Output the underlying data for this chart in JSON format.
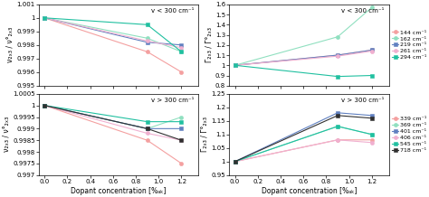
{
  "top_left": {
    "label": "v < 300 cm⁻¹",
    "x": [
      0,
      0.9,
      1.2
    ],
    "series": [
      {
        "label": "144 cm⁻¹",
        "color": "#f4a0a0",
        "marker": "o",
        "y": [
          1.0,
          0.9975,
          0.996
        ]
      },
      {
        "label": "162 cm⁻¹",
        "color": "#90e0c0",
        "marker": "o",
        "y": [
          1.0,
          0.9985,
          0.9975
        ]
      },
      {
        "label": "219 cm⁻¹",
        "color": "#6080c0",
        "marker": "s",
        "y": [
          1.0,
          0.9982,
          0.998
        ]
      },
      {
        "label": "261 cm⁻¹",
        "color": "#f0b0d0",
        "marker": "o",
        "y": [
          1.0,
          0.9983,
          0.9978
        ]
      },
      {
        "label": "294 cm⁻¹",
        "color": "#20c0a0",
        "marker": "s",
        "y": [
          1.0,
          0.9995,
          0.9975
        ]
      }
    ],
    "ylabel": "ν₂ₓ₃ / ν°₂ₓ₃",
    "ylim": [
      0.995,
      1.001
    ],
    "yticks": [
      0.995,
      0.996,
      0.997,
      0.998,
      0.999,
      1.0,
      1.001
    ]
  },
  "top_right": {
    "label": "v < 300 cm⁻¹",
    "x": [
      0,
      0.9,
      1.2
    ],
    "series": [
      {
        "label": "144 cm⁻¹",
        "color": "#f4a0a0",
        "marker": "o",
        "y": [
          1.0,
          1.1,
          1.15
        ]
      },
      {
        "label": "162 cm⁻¹",
        "color": "#90e0c0",
        "marker": "o",
        "y": [
          1.0,
          1.28,
          1.57
        ]
      },
      {
        "label": "219 cm⁻¹",
        "color": "#6080c0",
        "marker": "s",
        "y": [
          1.0,
          1.1,
          1.15
        ]
      },
      {
        "label": "261 cm⁻¹",
        "color": "#f0b0d0",
        "marker": "o",
        "y": [
          1.0,
          1.09,
          1.14
        ]
      },
      {
        "label": "294 cm⁻¹",
        "color": "#20c0a0",
        "marker": "s",
        "y": [
          1.0,
          0.89,
          0.9
        ]
      }
    ],
    "ylabel": "Γ₂ₓ₃ / Γ°₂ₓ₃",
    "ylim": [
      0.8,
      1.6
    ],
    "yticks": [
      0.8,
      0.9,
      1.0,
      1.1,
      1.2,
      1.3,
      1.4,
      1.5,
      1.6
    ],
    "legend_labels": [
      "144 cm⁻¹",
      "162 cm⁻¹",
      "219 cm⁻¹",
      "261 cm⁻¹",
      "294 cm⁻¹"
    ],
    "legend_colors": [
      "#f4a0a0",
      "#90e0c0",
      "#6080c0",
      "#f0b0d0",
      "#20c0a0"
    ],
    "legend_markers": [
      "o",
      "o",
      "s",
      "o",
      "s"
    ]
  },
  "bottom_left": {
    "label": "v > 300 cm⁻¹",
    "x": [
      0,
      0.9,
      1.2
    ],
    "series": [
      {
        "label": "339 cm⁻¹",
        "color": "#f4a0a0",
        "marker": "o",
        "y": [
          1.0,
          0.9985,
          0.9975
        ]
      },
      {
        "label": "369 cm⁻¹",
        "color": "#90e0c0",
        "marker": "o",
        "y": [
          1.0,
          0.999,
          0.9995
        ]
      },
      {
        "label": "401 cm⁻¹",
        "color": "#6080c0",
        "marker": "s",
        "y": [
          1.0,
          0.999,
          0.999
        ]
      },
      {
        "label": "406 cm⁻¹",
        "color": "#f0b0d0",
        "marker": "o",
        "y": [
          1.0,
          0.9988,
          0.9985
        ]
      },
      {
        "label": "545 cm⁻¹",
        "color": "#20c0a0",
        "marker": "s",
        "y": [
          1.0,
          0.9993,
          0.9993
        ]
      },
      {
        "label": "718 cm⁻¹",
        "color": "#303030",
        "marker": "s",
        "y": [
          1.0,
          0.999,
          0.9985
        ]
      }
    ],
    "ylabel": "ν₂ₓ₃ / ν°₂ₓ₃",
    "ylim": [
      0.997,
      1.0005
    ],
    "yticks": [
      0.997,
      0.9975,
      0.998,
      0.9985,
      0.999,
      0.9995,
      1.0,
      1.0005
    ]
  },
  "bottom_right": {
    "label": "v > 300 cm⁻¹",
    "x": [
      0,
      0.9,
      1.2
    ],
    "series": [
      {
        "label": "339 cm⁻¹",
        "color": "#f4a0a0",
        "marker": "o",
        "y": [
          1.0,
          1.08,
          1.08
        ]
      },
      {
        "label": "369 cm⁻¹",
        "color": "#90e0c0",
        "marker": "o",
        "y": [
          1.0,
          1.13,
          1.1
        ]
      },
      {
        "label": "401 cm⁻¹",
        "color": "#6080c0",
        "marker": "s",
        "y": [
          1.0,
          1.18,
          1.17
        ]
      },
      {
        "label": "406 cm⁻¹",
        "color": "#f0b0d0",
        "marker": "o",
        "y": [
          1.0,
          1.08,
          1.07
        ]
      },
      {
        "label": "545 cm⁻¹",
        "color": "#20c0a0",
        "marker": "s",
        "y": [
          1.0,
          1.13,
          1.1
        ]
      },
      {
        "label": "718 cm⁻¹",
        "color": "#303030",
        "marker": "s",
        "y": [
          1.0,
          1.17,
          1.16
        ]
      }
    ],
    "ylabel": "Γ₂ₓ₃ / Γ°₂ₓ₃",
    "ylim": [
      0.95,
      1.25
    ],
    "yticks": [
      0.95,
      1.0,
      1.05,
      1.1,
      1.15,
      1.2,
      1.25
    ],
    "legend_labels": [
      "339 cm⁻¹",
      "369 cm⁻¹",
      "401 cm⁻¹",
      "406 cm⁻¹",
      "545 cm⁻¹",
      "718 cm⁻¹"
    ],
    "legend_colors": [
      "#f4a0a0",
      "#90e0c0",
      "#6080c0",
      "#f0b0d0",
      "#20c0a0",
      "#303030"
    ],
    "legend_markers": [
      "o",
      "o",
      "s",
      "o",
      "s",
      "s"
    ]
  },
  "xlabel": "Dopant concentration [%ₐₖ]",
  "xlim": [
    -0.05,
    1.35
  ],
  "xticks": [
    0,
    0.2,
    0.4,
    0.6,
    0.8,
    1.0,
    1.2
  ],
  "fontsize": 5.5,
  "markersize": 3,
  "linewidth": 0.8
}
